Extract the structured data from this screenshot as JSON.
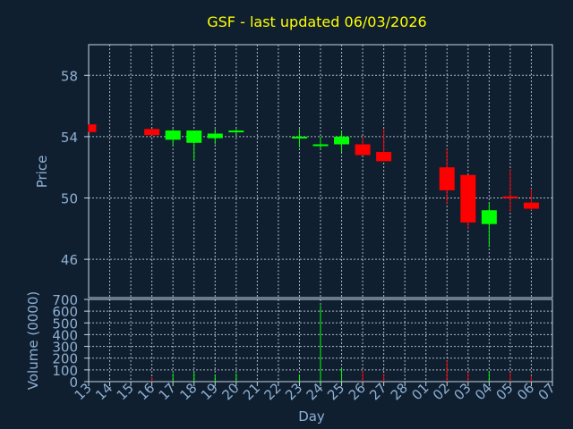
{
  "chart_data": {
    "type": "candlestick",
    "title": "GSF - last updated 06/03/2026",
    "xlabel": "Day",
    "x_ticks": [
      "13",
      "14",
      "15",
      "16",
      "17",
      "18",
      "19",
      "20",
      "21",
      "22",
      "23",
      "24",
      "25",
      "26",
      "27",
      "28",
      "01",
      "02",
      "03",
      "04",
      "05",
      "06",
      "07"
    ],
    "price_panel": {
      "ylabel": "Price",
      "ylim": [
        43.5,
        60.0
      ],
      "y_ticks": [
        46,
        50,
        54,
        58
      ],
      "grid": true,
      "candles": [
        {
          "day": "13",
          "open": 54.8,
          "high": 54.8,
          "low": 54.3,
          "close": 54.3,
          "color": "red"
        },
        {
          "day": "16",
          "open": 54.5,
          "high": 54.5,
          "low": 54.1,
          "close": 54.1,
          "color": "red"
        },
        {
          "day": "17",
          "open": 53.8,
          "high": 54.5,
          "low": 53.4,
          "close": 54.4,
          "color": "green"
        },
        {
          "day": "18",
          "open": 53.6,
          "high": 54.4,
          "low": 52.5,
          "close": 54.4,
          "color": "green"
        },
        {
          "day": "19",
          "open": 53.9,
          "high": 54.5,
          "low": 53.5,
          "close": 54.2,
          "color": "green"
        },
        {
          "day": "20",
          "open": 54.3,
          "high": 54.5,
          "low": 54.1,
          "close": 54.4,
          "color": "green"
        },
        {
          "day": "23",
          "open": 53.9,
          "high": 54.5,
          "low": 53.3,
          "close": 54.0,
          "color": "green"
        },
        {
          "day": "24",
          "open": 53.4,
          "high": 54.0,
          "low": 53.2,
          "close": 53.5,
          "color": "green"
        },
        {
          "day": "25",
          "open": 53.5,
          "high": 54.4,
          "low": 53.0,
          "close": 54.0,
          "color": "green"
        },
        {
          "day": "26",
          "open": 53.5,
          "high": 54.0,
          "low": 52.8,
          "close": 52.8,
          "color": "red"
        },
        {
          "day": "27",
          "open": 53.0,
          "high": 54.5,
          "low": 52.4,
          "close": 52.4,
          "color": "red"
        },
        {
          "day": "02",
          "open": 52.0,
          "high": 53.2,
          "low": 49.6,
          "close": 50.5,
          "color": "red"
        },
        {
          "day": "03",
          "open": 51.5,
          "high": 51.5,
          "low": 48.0,
          "close": 48.4,
          "color": "red"
        },
        {
          "day": "04",
          "open": 48.3,
          "high": 49.7,
          "low": 46.8,
          "close": 49.2,
          "color": "green"
        },
        {
          "day": "05",
          "open": 50.1,
          "high": 51.9,
          "low": 49.1,
          "close": 50.0,
          "color": "red"
        },
        {
          "day": "06",
          "open": 49.7,
          "high": 50.6,
          "low": 49.2,
          "close": 49.3,
          "color": "red"
        }
      ]
    },
    "volume_panel": {
      "ylabel": "Volume (0000)",
      "ylim": [
        0,
        700
      ],
      "y_ticks": [
        0,
        100,
        200,
        300,
        400,
        500,
        600,
        700
      ],
      "grid": true,
      "bars": [
        {
          "day": "16",
          "value": 40,
          "color": "red"
        },
        {
          "day": "17",
          "value": 70,
          "color": "green"
        },
        {
          "day": "18",
          "value": 80,
          "color": "green"
        },
        {
          "day": "19",
          "value": 60,
          "color": "green"
        },
        {
          "day": "20",
          "value": 70,
          "color": "green"
        },
        {
          "day": "23",
          "value": 60,
          "color": "green"
        },
        {
          "day": "24",
          "value": 650,
          "color": "green"
        },
        {
          "day": "25",
          "value": 120,
          "color": "green"
        },
        {
          "day": "26",
          "value": 90,
          "color": "red"
        },
        {
          "day": "27",
          "value": 70,
          "color": "red"
        },
        {
          "day": "02",
          "value": 180,
          "color": "red"
        },
        {
          "day": "03",
          "value": 80,
          "color": "red"
        },
        {
          "day": "04",
          "value": 90,
          "color": "green"
        },
        {
          "day": "05",
          "value": 80,
          "color": "red"
        },
        {
          "day": "06",
          "value": 50,
          "color": "red"
        }
      ]
    },
    "colors": {
      "up": "#00ff00",
      "down": "#ff0000",
      "background": "#0f1f2f",
      "title": "#ffff00",
      "axis_text": "#8fb0d4"
    }
  }
}
